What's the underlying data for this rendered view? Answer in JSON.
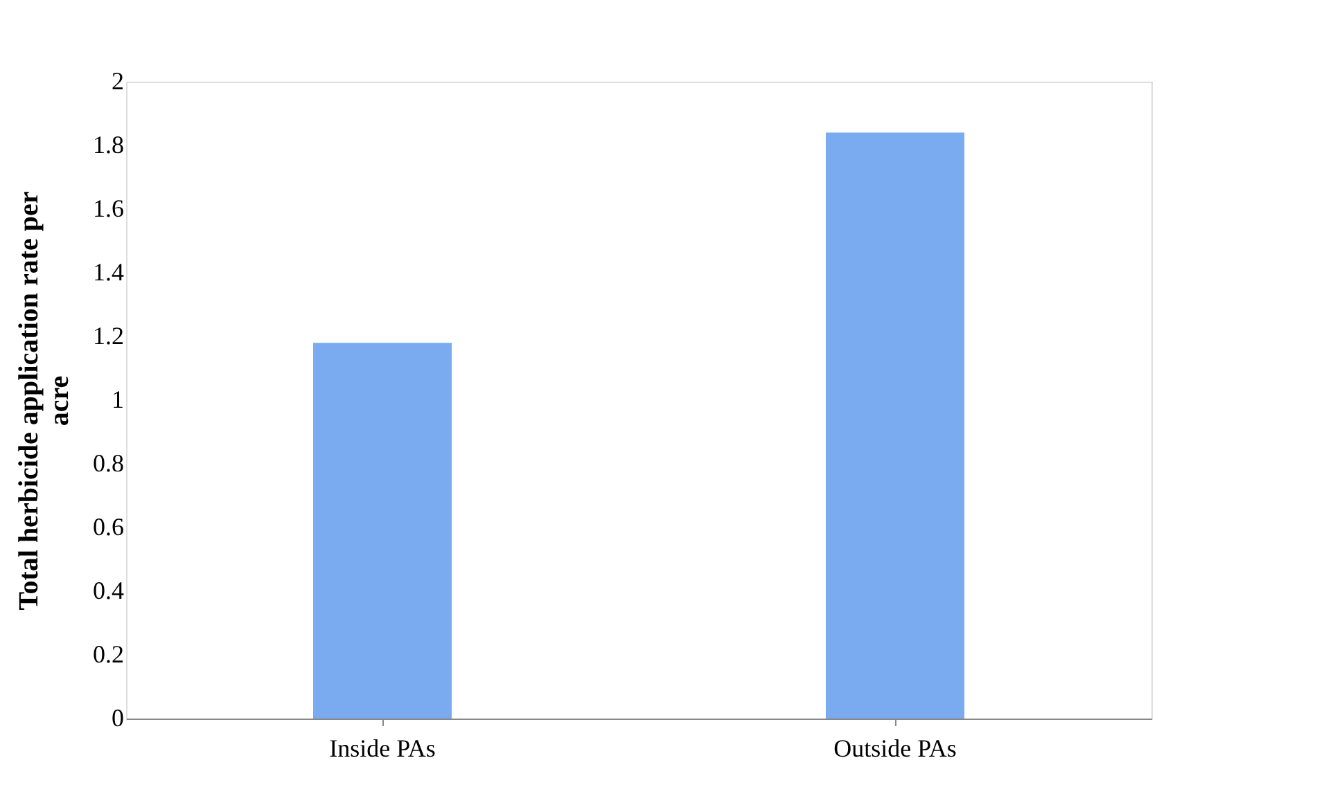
{
  "chart_data": {
    "type": "bar",
    "ylabel": "Total herbicide application rate per acre",
    "categories": [
      "Inside PAs",
      "Outside PAs"
    ],
    "values": [
      1.18,
      1.84
    ],
    "color": "#7aaaf0",
    "ylim": [
      0,
      2
    ],
    "yticks": [
      0,
      0.2,
      0.4,
      0.6,
      0.8,
      1,
      1.2,
      1.4,
      1.6,
      1.8,
      2
    ],
    "grid": false
  }
}
